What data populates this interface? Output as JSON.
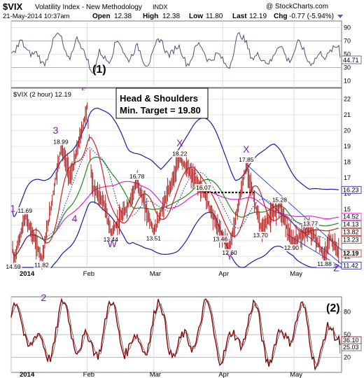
{
  "header": {
    "symbol": "$VIX",
    "name": "Volatility Index - New Methodology",
    "exchange": "INDX",
    "date": "21-May-2014 10:37am",
    "open_label": "Open",
    "open": "12.38",
    "high_label": "High",
    "high": "12.38",
    "low_label": "Low",
    "low": "11.80",
    "last_label": "Last",
    "last": "12.19",
    "chg_label": "Chg",
    "chg": "-0.77 (-5.94%)",
    "watermark": "@ StockCharts.com"
  },
  "rsi_panel": {
    "ticks": [
      "90",
      "70",
      "50",
      "30",
      "10"
    ],
    "last_value": "44.71",
    "wave_label": "(1)"
  },
  "price_panel": {
    "legend": "$VIX (2 hour) 12.19",
    "ticks": [
      "22",
      "21",
      "20",
      "19",
      "18",
      "17",
      "16",
      "15",
      "14",
      "13",
      "12"
    ],
    "annotation_title": "Head & Shoulders",
    "annotation_target": "Min. Target = 19.80",
    "right_labels": [
      "16.23",
      "14.52",
      "14.13",
      "13.82",
      "13.23",
      "12.19",
      "11.42"
    ],
    "value_labels": [
      "14.59",
      "11.69",
      "11.82",
      "18.99",
      "13.44",
      "16.78",
      "13.51",
      "18.22",
      "16.07",
      "13.46",
      "12.60",
      "17.85",
      "13.70",
      "15.28",
      "12.90",
      "13.77",
      "11.88"
    ],
    "wave_labels": [
      "1",
      "2",
      "3",
      "4",
      "5",
      "W",
      "X",
      "X",
      "Y",
      "Z"
    ]
  },
  "lower_panel": {
    "ticks": [
      "80",
      "50",
      "20"
    ],
    "right_labels": [
      "36.10",
      "25.03"
    ],
    "wave_label": "(2)"
  },
  "x_axis": [
    "2014",
    "Feb",
    "Mar",
    "Apr",
    "May"
  ],
  "colors": {
    "wave": "#7a1fa2",
    "price": "#b22222",
    "band": "#1a1aa8",
    "ma_red": "#cc2020",
    "ma_green": "#1f8a1f",
    "ma_magenta": "#e020e0",
    "trend": "#2a4ae0",
    "rsi": "#44557a",
    "stoch": "#8b0000"
  },
  "chart_data": {
    "type": "line",
    "title": "$VIX Volatility Index - New Methodology (2 hour)",
    "date_axis": [
      "2014",
      "Feb",
      "Mar",
      "Apr",
      "May"
    ],
    "price_pivots": [
      {
        "date": "2014-01-02",
        "value": 13.6
      },
      {
        "date": "2014-01-03",
        "value": 11.69,
        "label": "11.69"
      },
      {
        "date": "2014-01-08",
        "value": 14.59,
        "label": "14.59"
      },
      {
        "date": "2014-01-15",
        "value": 11.82,
        "label": "11.82"
      },
      {
        "date": "2014-01-23",
        "value": 18.99,
        "label": "18.99"
      },
      {
        "date": "2014-01-27",
        "value": 17.0
      },
      {
        "date": "2014-02-03",
        "value": 21.5
      },
      {
        "date": "2014-02-05",
        "value": 16.5
      },
      {
        "date": "2014-02-10",
        "value": 15.4
      },
      {
        "date": "2014-02-13",
        "value": 13.44,
        "label": "13.44"
      },
      {
        "date": "2014-02-20",
        "value": 15.2
      },
      {
        "date": "2014-02-24",
        "value": 16.78,
        "label": "16.78"
      },
      {
        "date": "2014-03-03",
        "value": 13.51,
        "label": "13.51"
      },
      {
        "date": "2014-03-14",
        "value": 18.22,
        "label": "18.22"
      },
      {
        "date": "2014-03-24",
        "value": 16.07,
        "label": "16.07"
      },
      {
        "date": "2014-03-31",
        "value": 13.46,
        "label": "13.46"
      },
      {
        "date": "2014-04-04",
        "value": 12.6,
        "label": "12.60"
      },
      {
        "date": "2014-04-11",
        "value": 17.85,
        "label": "17.85"
      },
      {
        "date": "2014-04-17",
        "value": 13.7,
        "label": "13.70"
      },
      {
        "date": "2014-04-25",
        "value": 15.28,
        "label": "15.28"
      },
      {
        "date": "2014-04-30",
        "value": 12.9,
        "label": "12.90"
      },
      {
        "date": "2014-05-08",
        "value": 13.77,
        "label": "13.77"
      },
      {
        "date": "2014-05-14",
        "value": 11.88,
        "label": "11.88"
      },
      {
        "date": "2014-05-16",
        "value": 13.23
      },
      {
        "date": "2014-05-20",
        "value": 12.19
      }
    ],
    "price_ylim": [
      11.3,
      22.7
    ],
    "rsi_ylim": [
      0,
      100
    ],
    "stoch_ylim": [
      0,
      100
    ],
    "overlays": {
      "upper_band_last": 16.23,
      "ma_magenta_last": 14.52,
      "ma_green_last": 14.13,
      "ma_red_last": 13.82,
      "lower_band_last": 11.42
    },
    "necklines": [
      16.07
    ],
    "rsi_last": 44.71,
    "stoch_last": [
      36.1,
      25.03
    ],
    "annotation": "Head & Shoulders Min. Target = 19.80"
  }
}
